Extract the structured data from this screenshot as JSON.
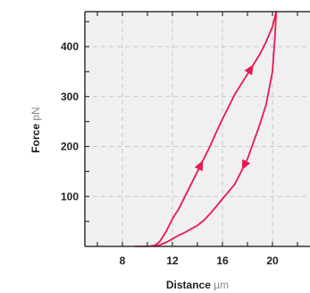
{
  "chart_data": {
    "type": "line",
    "title": "",
    "xlabel": {
      "name": "Distance",
      "unit": "µm"
    },
    "ylabel": {
      "name": "Force",
      "unit": "pN"
    },
    "xlim": [
      5,
      23
    ],
    "ylim": [
      0,
      470
    ],
    "xticks": [
      8,
      12,
      16,
      20
    ],
    "yticks": [
      100,
      200,
      300,
      400
    ],
    "grid": true,
    "legend": "none",
    "colors": {
      "line": "#e8194f",
      "background": "#f0f0f0",
      "grid": "#c8c8c8",
      "axis": "#333333"
    },
    "series": [
      {
        "x": [
          9.0,
          10.0,
          10.6,
          11.0,
          11.5,
          12.0,
          12.5,
          13.0,
          13.5,
          14.0,
          14.5,
          15.0,
          15.5,
          16.0,
          16.5,
          17.0,
          17.5,
          18.0,
          18.5,
          19.0,
          19.5,
          20.0,
          20.3
        ],
        "y": [
          0,
          0,
          2,
          10,
          30,
          55,
          75,
          100,
          125,
          150,
          175,
          200,
          228,
          255,
          280,
          305,
          325,
          345,
          365,
          385,
          410,
          440,
          470
        ],
        "arrows_at": [
          9,
          17
        ]
      },
      {
        "x": [
          20.3,
          20.2,
          20.0,
          19.5,
          19.0,
          18.5,
          18.0,
          17.5,
          17.0,
          16.5,
          16.0,
          15.5,
          15.0,
          14.5,
          14.0,
          13.5,
          13.0,
          12.5,
          12.0,
          11.5,
          11.0,
          10.6
        ],
        "y": [
          470,
          420,
          350,
          285,
          245,
          210,
          175,
          150,
          125,
          110,
          95,
          80,
          65,
          52,
          42,
          35,
          28,
          22,
          15,
          8,
          3,
          0
        ],
        "arrows_at": [
          6
        ]
      }
    ]
  }
}
